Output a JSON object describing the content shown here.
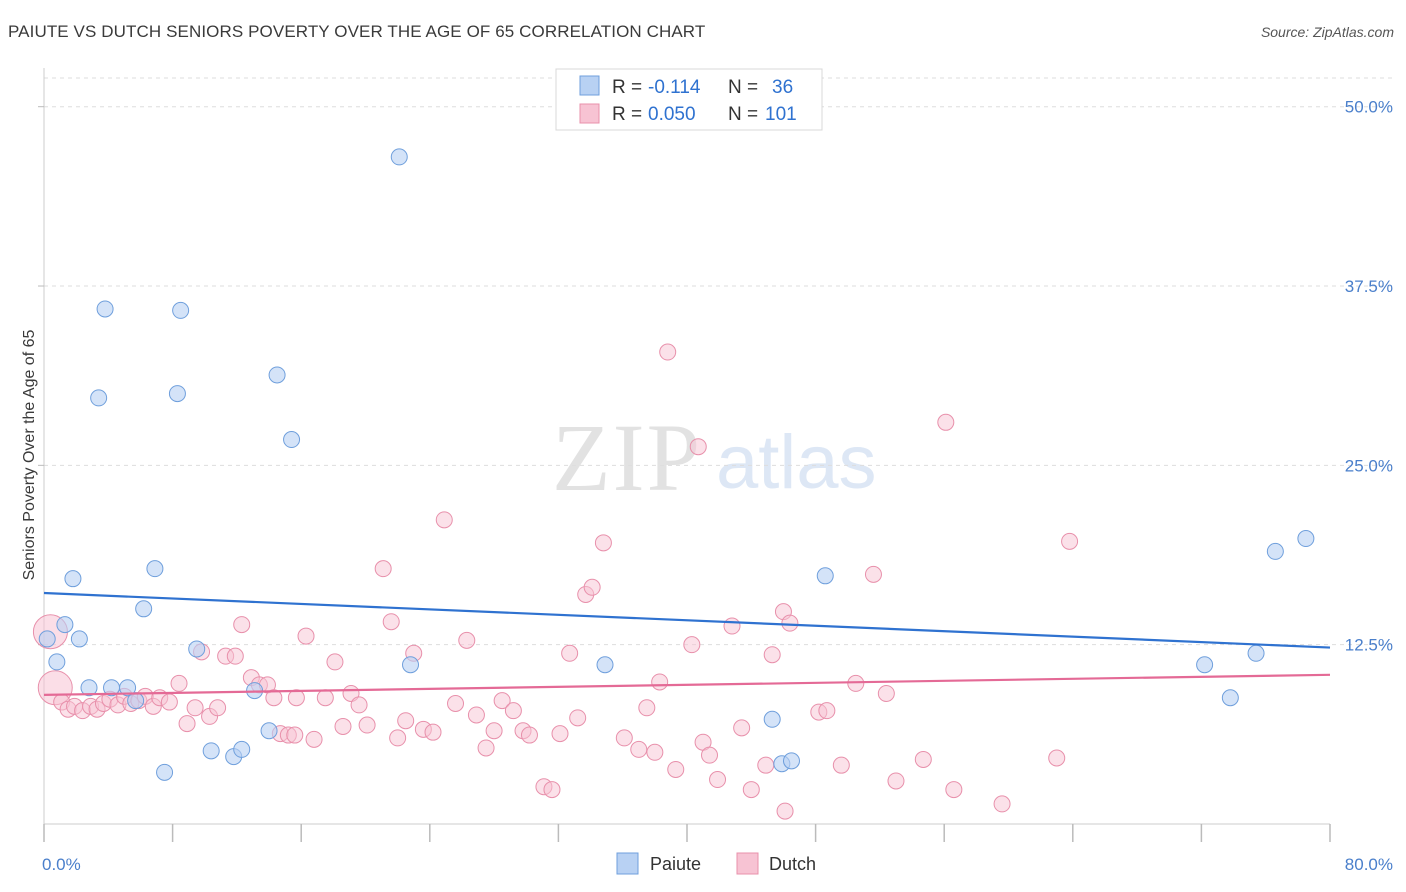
{
  "title": "PAIUTE VS DUTCH SENIORS POVERTY OVER THE AGE OF 65 CORRELATION CHART",
  "source": "Source: ZipAtlas.com",
  "watermark": {
    "zip": "ZIP",
    "atlas": "atlas"
  },
  "colors": {
    "paiute_fill": "#b8d1f3",
    "paiute_stroke": "#6f9fdc",
    "paiute_line": "#2f72d0",
    "dutch_fill": "#f7c3d3",
    "dutch_stroke": "#e890ab",
    "dutch_line": "#e46a96",
    "tick_text": "#4a7fcb",
    "grid": "#dddddd"
  },
  "legend": {
    "rows": [
      {
        "r_label": "R = ",
        "r_value": "-0.114",
        "n_label": "N = ",
        "n_value": "36"
      },
      {
        "r_label": "R = ",
        "r_value": "0.050",
        "n_label": "N = ",
        "n_value": "101"
      }
    ]
  },
  "chart_data": {
    "type": "scatter",
    "title": "PAIUTE VS DUTCH SENIORS POVERTY OVER THE AGE OF 65 CORRELATION CHART",
    "xlabel": "",
    "ylabel": "Seniors Poverty Over the Age of 65",
    "xlim": [
      0,
      80
    ],
    "ylim": [
      0,
      52
    ],
    "x_tick_labels": [
      "0.0%",
      "80.0%"
    ],
    "y_ticks": [
      12.5,
      25.0,
      37.5,
      50.0
    ],
    "y_tick_labels": [
      "12.5%",
      "25.0%",
      "37.5%",
      "50.0%"
    ],
    "grid": "horizontal dashed",
    "legend_placement": "top-center",
    "series": [
      {
        "name": "Paiute",
        "r": -0.114,
        "n": 36,
        "trend": {
          "x": [
            0,
            80
          ],
          "y": [
            16.1,
            12.3
          ]
        },
        "points": [
          [
            0.2,
            12.9
          ],
          [
            0.8,
            11.3
          ],
          [
            1.3,
            13.9
          ],
          [
            1.8,
            17.1
          ],
          [
            2.2,
            12.9
          ],
          [
            2.8,
            9.5
          ],
          [
            3.4,
            29.7
          ],
          [
            3.8,
            35.9
          ],
          [
            4.2,
            9.5
          ],
          [
            5.2,
            9.5
          ],
          [
            5.7,
            8.6
          ],
          [
            6.2,
            15.0
          ],
          [
            6.9,
            17.8
          ],
          [
            7.5,
            3.6
          ],
          [
            8.3,
            30.0
          ],
          [
            8.5,
            35.8
          ],
          [
            9.5,
            12.2
          ],
          [
            10.4,
            5.1
          ],
          [
            11.8,
            4.7
          ],
          [
            12.3,
            5.2
          ],
          [
            13.1,
            9.3
          ],
          [
            14.0,
            6.5
          ],
          [
            14.5,
            31.3
          ],
          [
            15.4,
            26.8
          ],
          [
            22.1,
            46.5
          ],
          [
            22.8,
            11.1
          ],
          [
            34.9,
            11.1
          ],
          [
            45.3,
            7.3
          ],
          [
            45.9,
            4.2
          ],
          [
            46.5,
            4.4
          ],
          [
            48.6,
            17.3
          ],
          [
            72.2,
            11.1
          ],
          [
            73.8,
            8.8
          ],
          [
            75.4,
            11.9
          ],
          [
            76.6,
            19.0
          ],
          [
            78.5,
            19.9
          ]
        ]
      },
      {
        "name": "Dutch",
        "r": 0.05,
        "n": 101,
        "trend": {
          "x": [
            0,
            80
          ],
          "y": [
            9.0,
            10.4
          ]
        },
        "points": [
          [
            0.4,
            13.4
          ],
          [
            0.7,
            9.5
          ],
          [
            1.1,
            8.5
          ],
          [
            1.5,
            8.0
          ],
          [
            1.9,
            8.2
          ],
          [
            2.4,
            7.9
          ],
          [
            2.9,
            8.2
          ],
          [
            3.3,
            8.0
          ],
          [
            3.7,
            8.4
          ],
          [
            4.1,
            8.7
          ],
          [
            4.6,
            8.3
          ],
          [
            5.0,
            8.9
          ],
          [
            5.4,
            8.4
          ],
          [
            5.9,
            8.6
          ],
          [
            6.3,
            8.9
          ],
          [
            6.8,
            8.2
          ],
          [
            7.2,
            8.8
          ],
          [
            7.8,
            8.5
          ],
          [
            8.4,
            9.8
          ],
          [
            8.9,
            7.0
          ],
          [
            9.4,
            8.1
          ],
          [
            9.8,
            12.0
          ],
          [
            10.3,
            7.5
          ],
          [
            10.8,
            8.1
          ],
          [
            11.3,
            11.7
          ],
          [
            11.9,
            11.7
          ],
          [
            12.3,
            13.9
          ],
          [
            12.9,
            10.2
          ],
          [
            13.4,
            9.7
          ],
          [
            13.9,
            9.7
          ],
          [
            14.3,
            8.8
          ],
          [
            14.7,
            6.3
          ],
          [
            15.2,
            6.2
          ],
          [
            15.7,
            8.8
          ],
          [
            16.3,
            13.1
          ],
          [
            16.8,
            5.9
          ],
          [
            17.5,
            8.8
          ],
          [
            18.1,
            11.3
          ],
          [
            18.6,
            6.8
          ],
          [
            19.1,
            9.1
          ],
          [
            19.6,
            8.3
          ],
          [
            20.1,
            6.9
          ],
          [
            21.1,
            17.8
          ],
          [
            21.6,
            14.1
          ],
          [
            22.0,
            6.0
          ],
          [
            22.5,
            7.2
          ],
          [
            23.0,
            11.9
          ],
          [
            23.6,
            6.6
          ],
          [
            24.2,
            6.4
          ],
          [
            24.9,
            21.2
          ],
          [
            25.6,
            8.4
          ],
          [
            26.3,
            12.8
          ],
          [
            26.9,
            7.6
          ],
          [
            27.5,
            5.3
          ],
          [
            28.0,
            6.5
          ],
          [
            28.5,
            8.6
          ],
          [
            29.2,
            7.9
          ],
          [
            29.8,
            6.5
          ],
          [
            30.2,
            6.2
          ],
          [
            31.1,
            2.6
          ],
          [
            31.6,
            2.4
          ],
          [
            32.1,
            6.3
          ],
          [
            32.7,
            11.9
          ],
          [
            33.2,
            7.4
          ],
          [
            33.7,
            16.0
          ],
          [
            34.1,
            16.5
          ],
          [
            34.8,
            19.6
          ],
          [
            36.1,
            6.0
          ],
          [
            37.0,
            5.2
          ],
          [
            37.5,
            8.1
          ],
          [
            38.0,
            5.0
          ],
          [
            38.3,
            9.9
          ],
          [
            38.8,
            32.9
          ],
          [
            39.3,
            3.8
          ],
          [
            40.3,
            12.5
          ],
          [
            40.7,
            26.3
          ],
          [
            41.0,
            5.7
          ],
          [
            41.4,
            4.8
          ],
          [
            41.9,
            3.1
          ],
          [
            42.8,
            13.8
          ],
          [
            43.4,
            6.7
          ],
          [
            44.0,
            2.4
          ],
          [
            44.9,
            4.1
          ],
          [
            45.3,
            11.8
          ],
          [
            46.0,
            14.8
          ],
          [
            46.4,
            14.0
          ],
          [
            48.2,
            7.8
          ],
          [
            48.7,
            7.9
          ],
          [
            49.6,
            4.1
          ],
          [
            50.5,
            9.8
          ],
          [
            51.6,
            17.4
          ],
          [
            52.4,
            9.1
          ],
          [
            53.0,
            3.0
          ],
          [
            54.7,
            4.5
          ],
          [
            56.6,
            2.4
          ],
          [
            56.1,
            28.0
          ],
          [
            59.6,
            1.4
          ],
          [
            63.0,
            4.6
          ],
          [
            63.8,
            19.7
          ],
          [
            46.1,
            0.9
          ],
          [
            15.6,
            6.2
          ]
        ]
      }
    ]
  },
  "bottom_legend": [
    {
      "label": "Paiute"
    },
    {
      "label": "Dutch"
    }
  ]
}
